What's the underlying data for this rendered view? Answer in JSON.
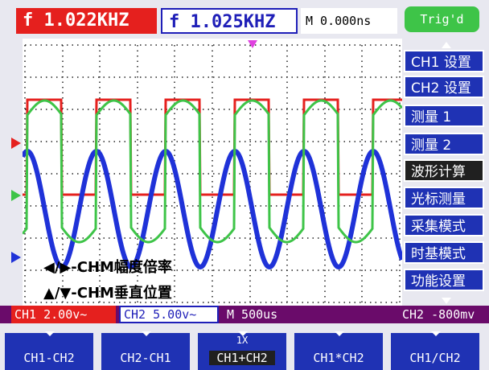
{
  "top": {
    "ch1_freq": "f  1.022KHZ",
    "ch2_freq": "f  1.025KHZ",
    "time_offset": "M 0.000ns",
    "trigger_status": "Trig'd"
  },
  "menu": {
    "items": [
      {
        "label": "CH1 设置",
        "active": false
      },
      {
        "label": "CH2 设置",
        "active": false
      },
      {
        "label": "测量   1",
        "active": false
      },
      {
        "label": "测量   2",
        "active": false
      },
      {
        "label": "波形计算",
        "active": true
      },
      {
        "label": "光标测量",
        "active": false
      },
      {
        "label": "采集模式",
        "active": false
      },
      {
        "label": "时基模式",
        "active": false
      },
      {
        "label": "功能设置",
        "active": false
      }
    ]
  },
  "hints": {
    "line1_arrows": "◀/▶",
    "line1_text": "-CHM幅度倍率",
    "line2_arrows": "▲/▼",
    "line2_text": "-CHM垂直位置"
  },
  "status": {
    "ch1_scale": "CH1 2.00v~",
    "ch2_scale": "CH2 5.00v~",
    "timebase": "M 500us",
    "trigger": "CH2 -800mv"
  },
  "softkeys": [
    {
      "label": "CH1-CH2",
      "sub": "",
      "selected": false
    },
    {
      "label": "CH2-CH1",
      "sub": "",
      "selected": false
    },
    {
      "label": "CH1+CH2",
      "sub": "1X",
      "selected": true
    },
    {
      "label": "CH1*CH2",
      "sub": "",
      "selected": false
    },
    {
      "label": "CH1/CH2",
      "sub": "",
      "selected": false
    }
  ],
  "colors": {
    "ch1": "#e5201e",
    "ch2": "#1f32d8",
    "math": "#3ec448",
    "menu": "#1f32b4",
    "status": "#6a0b6a"
  }
}
